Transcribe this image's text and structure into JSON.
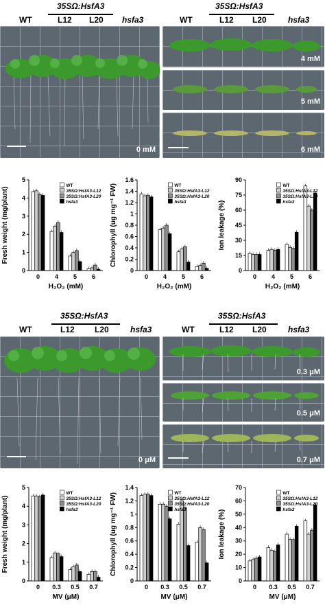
{
  "top": {
    "header_construct": "35SΩ:HsfA3",
    "header_wt": "WT",
    "header_l12": "L12",
    "header_l20": "L20",
    "header_mutant": "hsfa3",
    "panel_labels": [
      "0 mM",
      "4 mM",
      "5 mM",
      "6 mM"
    ]
  },
  "bottom": {
    "header_construct": "35SΩ:HsfA3",
    "header_wt": "WT",
    "header_l12": "L12",
    "header_l20": "L20",
    "header_mutant": "hsfa3",
    "panel_labels": [
      "0 μM",
      "0.3 μM",
      "0.5 μM",
      "0.7 μM"
    ]
  },
  "legend": [
    "WT",
    "35SΩ:HsfA3-L12",
    "35SΩ:HsfA3-L20",
    "hsfa3"
  ],
  "colors": {
    "wt": "#ffffff",
    "l12": "#cfcfcf",
    "l20": "#8f8f8f",
    "hsfa3": "#000000",
    "photo_bg": "#5d6770",
    "plant": "#3c9a2c"
  },
  "chart_data": [
    {
      "type": "bar",
      "xlabel": "H₂O₂ (mM)",
      "ylabel": "Fresh weight (mg/plant)",
      "categories": [
        "0",
        "4",
        "5",
        "6"
      ],
      "ylim": [
        0,
        5
      ],
      "yticks": [
        0,
        1,
        2,
        3,
        4,
        5
      ],
      "series": [
        {
          "name": "WT",
          "values": [
            4.35,
            2.15,
            0.8,
            0.1
          ]
        },
        {
          "name": "35SΩ:HsfA3-L12",
          "values": [
            4.4,
            2.45,
            1.0,
            0.15
          ]
        },
        {
          "name": "35SΩ:HsfA3-L20",
          "values": [
            4.2,
            2.65,
            1.1,
            0.3
          ]
        },
        {
          "name": "hsfa3",
          "values": [
            4.15,
            2.1,
            0.5,
            0.07
          ]
        }
      ]
    },
    {
      "type": "bar",
      "xlabel": "H₂O₂ (mM)",
      "ylabel": "Chlorophyll (ug mg⁻¹ FW)",
      "categories": [
        "0",
        "4",
        "5",
        "6"
      ],
      "ylim": [
        0,
        1.6
      ],
      "yticks": [
        0,
        0.2,
        0.4,
        0.6,
        0.8,
        1.0,
        1.2,
        1.4,
        1.6
      ],
      "series": [
        {
          "name": "WT",
          "values": [
            1.35,
            0.72,
            0.33,
            0.07
          ]
        },
        {
          "name": "35SΩ:HsfA3-L12",
          "values": [
            1.32,
            0.75,
            0.38,
            0.09
          ]
        },
        {
          "name": "35SΩ:HsfA3-L20",
          "values": [
            1.33,
            0.8,
            0.42,
            0.13
          ]
        },
        {
          "name": "hsfa3",
          "values": [
            1.3,
            0.65,
            0.15,
            0.04
          ]
        }
      ]
    },
    {
      "type": "bar",
      "xlabel": "H₂O₂ (mM)",
      "ylabel": "Ion leakage (%)",
      "categories": [
        "0",
        "4",
        "5",
        "6"
      ],
      "ylim": [
        0,
        90
      ],
      "yticks": [
        0,
        15,
        30,
        45,
        60,
        75,
        90
      ],
      "series": [
        {
          "name": "WT",
          "values": [
            17,
            20,
            26,
            84
          ]
        },
        {
          "name": "35SΩ:HsfA3-L12",
          "values": [
            16,
            21,
            23,
            64
          ]
        },
        {
          "name": "35SΩ:HsfA3-L20",
          "values": [
            16,
            20,
            22,
            60
          ]
        },
        {
          "name": "hsfa3",
          "values": [
            16,
            21,
            38,
            77
          ]
        }
      ]
    },
    {
      "type": "bar",
      "xlabel": "MV (μM)",
      "ylabel": "Fresh weight (mg/plant)",
      "categories": [
        "0",
        "0.3",
        "0.5",
        "0.7"
      ],
      "ylim": [
        0,
        5
      ],
      "yticks": [
        0,
        1,
        2,
        3,
        4,
        5
      ],
      "series": [
        {
          "name": "WT",
          "values": [
            4.55,
            1.25,
            0.6,
            0.35
          ]
        },
        {
          "name": "35SΩ:HsfA3-L12",
          "values": [
            4.55,
            1.5,
            0.75,
            0.5
          ]
        },
        {
          "name": "35SΩ:HsfA3-L20",
          "values": [
            4.5,
            1.45,
            0.85,
            0.5
          ]
        },
        {
          "name": "hsfa3",
          "values": [
            4.6,
            1.3,
            0.5,
            0.2
          ]
        }
      ]
    },
    {
      "type": "bar",
      "xlabel": "MV (μM)",
      "ylabel": "Chlorophyll (ug mg⁻¹ FW)",
      "categories": [
        "0",
        "0.3",
        "0.5",
        "0.7"
      ],
      "ylim": [
        0,
        1.4
      ],
      "yticks": [
        0,
        0.2,
        0.4,
        0.6,
        0.8,
        1.0,
        1.2,
        1.4
      ],
      "series": [
        {
          "name": "WT",
          "values": [
            1.28,
            1.15,
            0.85,
            0.58
          ]
        },
        {
          "name": "35SΩ:HsfA3-L12",
          "values": [
            1.3,
            1.15,
            1.2,
            0.8
          ]
        },
        {
          "name": "35SΩ:HsfA3-L20",
          "values": [
            1.3,
            1.12,
            1.1,
            0.77
          ]
        },
        {
          "name": "hsfa3",
          "values": [
            1.28,
            0.93,
            0.53,
            0.27
          ]
        }
      ]
    },
    {
      "type": "bar",
      "xlabel": "MV (μM)",
      "ylabel": "Ion leakage (%)",
      "categories": [
        "0",
        "0.3",
        "0.5",
        "0.7"
      ],
      "ylim": [
        0,
        70
      ],
      "yticks": [
        0,
        10,
        20,
        30,
        40,
        50,
        60,
        70
      ],
      "series": [
        {
          "name": "WT",
          "values": [
            15,
            25,
            35,
            45
          ]
        },
        {
          "name": "35SΩ:HsfA3-L12",
          "values": [
            16,
            23,
            31,
            35
          ]
        },
        {
          "name": "35SΩ:HsfA3-L20",
          "values": [
            17,
            22,
            31,
            38
          ]
        },
        {
          "name": "hsfa3",
          "values": [
            18,
            27,
            41,
            57
          ]
        }
      ]
    }
  ]
}
